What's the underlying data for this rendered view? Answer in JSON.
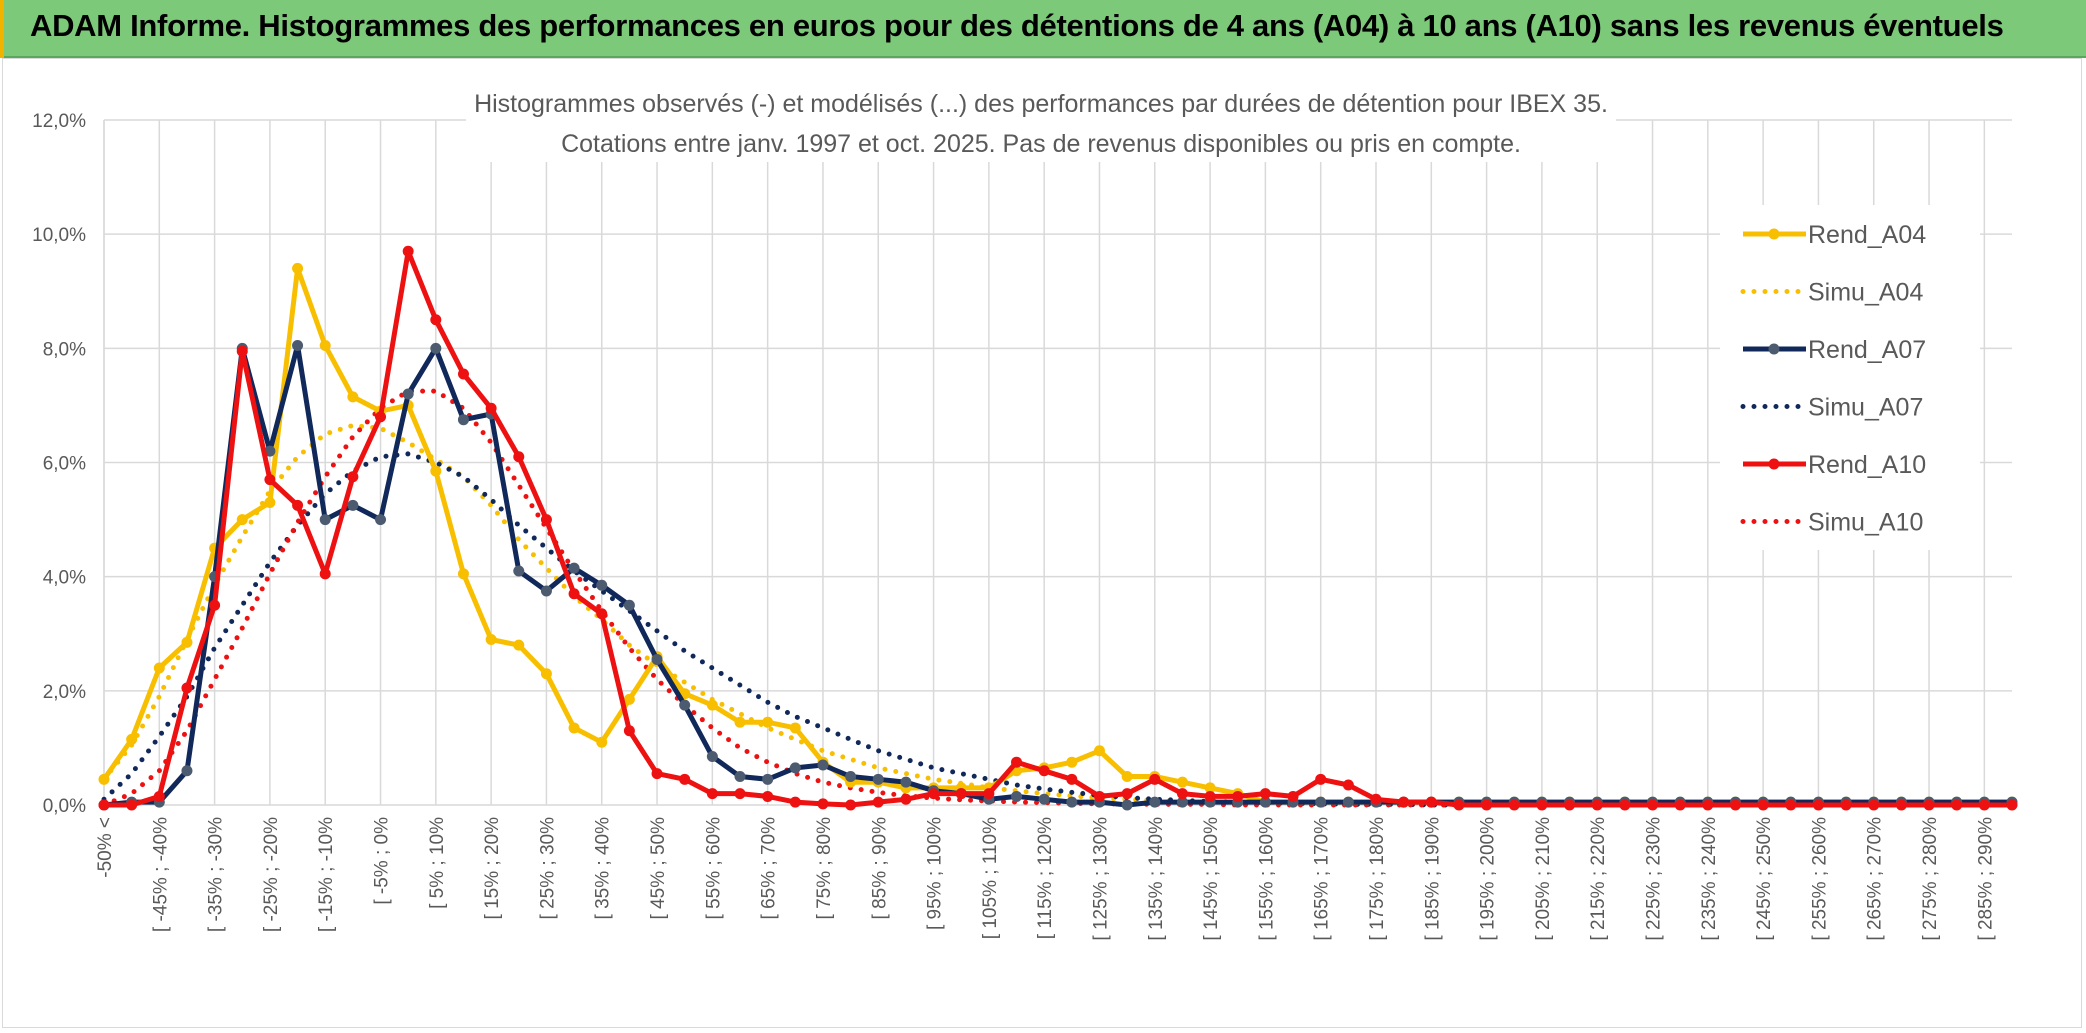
{
  "header": {
    "title": "ADAM Informe. Histogrammes des performances en euros pour des détentions de 4 ans (A04) à 10 ans (A10) sans les revenus éventuels"
  },
  "colors": {
    "header_bg": "#7dc97a",
    "a04": "#f8bf00",
    "a07": "#10285a",
    "a07_marker": "#4c5b70",
    "a10": "#ee1111",
    "grid": "#d9d9d9",
    "axis_text": "#595959"
  },
  "chart_data": {
    "type": "line",
    "title_line1": "Histogrammes observés (-) et modélisés (...) des performances par durées de détention pour IBEX 35.",
    "title_line2": "Cotations entre janv. 1997 et oct. 2025. Pas de revenus disponibles ou pris en compte.",
    "y_ticks": [
      "0,0%",
      "2,0%",
      "4,0%",
      "6,0%",
      "8,0%",
      "10,0%",
      "12,0%"
    ],
    "ylim": [
      0,
      12
    ],
    "categories": [
      "-50% <",
      "[ -50% ; -45%",
      "[ -45% ; -40%",
      "[ -40% ; -35%",
      "[ -35% ; -30%",
      "[ -30% ; -25%",
      "[ -25% ; -20%",
      "[ -20% ; -15%",
      "[ -15% ; -10%",
      "[ -10% ; -5%",
      "[ -5% ; 0%",
      "[ 0% ; 5%",
      "[ 5% ; 10%",
      "[ 10% ; 15%",
      "[ 15% ; 20%",
      "[ 20% ; 25%",
      "[ 25% ; 30%",
      "[ 30% ; 35%",
      "[ 35% ; 40%",
      "[ 40% ; 45%",
      "[ 45% ; 50%",
      "[ 50% ; 55%",
      "[ 55% ; 60%",
      "[ 60% ; 65%",
      "[ 65% ; 70%",
      "[ 70% ; 75%",
      "[ 75% ; 80%",
      "[ 80% ; 85%",
      "[ 85% ; 90%",
      "[ 90% ; 95%",
      "[ 95% ; 100%",
      "[ 100% ; 105%",
      "[ 105% ; 110%",
      "[ 110% ; 115%",
      "[ 115% ; 120%",
      "[ 120% ; 125%",
      "[ 125% ; 130%",
      "[ 130% ; 135%",
      "[ 135% ; 140%",
      "[ 140% ; 145%",
      "[ 145% ; 150%",
      "[ 150% ; 155%",
      "[ 155% ; 160%",
      "[ 160% ; 165%",
      "[ 165% ; 170%",
      "[ 170% ; 175%",
      "[ 175% ; 180%",
      "[ 180% ; 185%",
      "[ 185% ; 190%",
      "[ 190% ; 195%",
      "[ 195% ; 200%",
      "[ 200% ; 205%",
      "[ 205% ; 210%",
      "[ 210% ; 215%",
      "[ 215% ; 220%",
      "[ 220% ; 225%",
      "[ 225% ; 230%",
      "[ 230% ; 235%",
      "[ 235% ; 240%",
      "[ 240% ; 245%",
      "[ 245% ; 250%",
      "[ 250% ; 255%",
      "[ 255% ; 260%",
      "[ 260% ; 265%",
      "[ 265% ; 270%",
      "[ 270% ; 275%",
      "[ 275% ; 280%",
      "[ 280% ; 285%",
      "[ 285% ; 290%",
      "[ 290% ; 295%"
    ],
    "shown_labels": [
      "-50% <",
      "[ -45% ; -40%",
      "[ -35% ; -30%",
      "[ -25% ; -20%",
      "[ -15% ; -10%",
      "[ -5% ; 0%",
      "[ 5% ; 10%",
      "[ 15% ; 20%",
      "[ 25% ; 30%",
      "[ 35% ; 40%",
      "[ 45% ; 50%",
      "[ 55% ; 60%",
      "[ 65% ; 70%",
      "[ 75% ; 80%",
      "[ 85% ; 90%",
      "[ 95% ; 100%",
      "[ 105% ; 110%",
      "[ 115% ; 120%",
      "[ 125% ; 130%",
      "[ 135% ; 140%",
      "[ 145% ; 150%",
      "[ 155% ; 160%",
      "[ 165% ; 170%",
      "[ 175% ; 180%",
      "[ 185% ; 190%",
      "[ 195% ; 200%",
      "[ 205% ; 210%",
      "[ 215% ; 220%",
      "[ 225% ; 230%",
      "[ 235% ; 240%",
      "[ 245% ; 250%",
      "[ 255% ; 260%",
      "[ 265% ; 270%",
      "[ 275% ; 280%",
      "[ 285% ; 290%"
    ],
    "series": [
      {
        "name": "Rend_A04",
        "style": "solid",
        "color": "#f8bf00",
        "marker": true,
        "values": [
          0.45,
          1.15,
          2.4,
          2.85,
          4.5,
          5.0,
          5.3,
          9.4,
          8.05,
          7.15,
          6.9,
          7.0,
          5.85,
          4.05,
          2.9,
          2.8,
          2.3,
          1.35,
          1.1,
          1.85,
          2.6,
          1.95,
          1.75,
          1.45,
          1.45,
          1.35,
          0.75,
          0.4,
          0.4,
          0.3,
          0.3,
          0.3,
          0.3,
          0.6,
          0.65,
          0.75,
          0.95,
          0.5,
          0.5,
          0.4,
          0.3,
          0.2,
          0.05,
          0.05,
          0.05,
          0.05,
          0.05,
          0.05,
          0.05,
          0.05,
          0.05,
          0.05,
          0.05,
          0.05,
          0.05,
          0.05,
          0.05,
          0.05,
          0.05,
          0.05,
          0.05,
          0.05,
          0.05,
          0.05,
          0.05,
          0.05,
          0.05,
          0.05,
          0.05,
          0.05
        ]
      },
      {
        "name": "Simu_A04",
        "style": "dotted",
        "color": "#f8bf00",
        "marker": false,
        "values": [
          0.45,
          1.05,
          1.9,
          2.9,
          3.85,
          4.7,
          5.5,
          6.1,
          6.5,
          6.65,
          6.6,
          6.35,
          6.05,
          5.75,
          5.25,
          4.65,
          4.15,
          3.65,
          3.25,
          2.8,
          2.45,
          2.15,
          1.85,
          1.6,
          1.35,
          1.15,
          0.95,
          0.8,
          0.65,
          0.55,
          0.45,
          0.38,
          0.3,
          0.25,
          0.2,
          0.16,
          0.12,
          0.1,
          0.08,
          0.06,
          0.05,
          0.04,
          0.03,
          0.02,
          0.02,
          0.01,
          0.01,
          0.01,
          0,
          0,
          0,
          0,
          0,
          0,
          0,
          0,
          0,
          0,
          0,
          0,
          0,
          0,
          0,
          0,
          0,
          0,
          0,
          0,
          0,
          0
        ]
      },
      {
        "name": "Rend_A07",
        "style": "solid",
        "color": "#10285a",
        "marker": true,
        "values": [
          0.0,
          0.05,
          0.05,
          0.6,
          4.0,
          8.0,
          6.2,
          8.05,
          5.0,
          5.25,
          5.0,
          7.2,
          8.0,
          6.75,
          6.85,
          4.1,
          3.75,
          4.15,
          3.85,
          3.5,
          2.55,
          1.75,
          0.85,
          0.5,
          0.45,
          0.65,
          0.7,
          0.5,
          0.45,
          0.4,
          0.25,
          0.2,
          0.1,
          0.15,
          0.1,
          0.05,
          0.05,
          0.0,
          0.05,
          0.05,
          0.05,
          0.05,
          0.05,
          0.05,
          0.05,
          0.05,
          0.05,
          0.05,
          0.05,
          0.05,
          0.05,
          0.05,
          0.05,
          0.05,
          0.05,
          0.05,
          0.05,
          0.05,
          0.05,
          0.05,
          0.05,
          0.05,
          0.05,
          0.05,
          0.05,
          0.05,
          0.05,
          0.05,
          0.05,
          0.05
        ]
      },
      {
        "name": "Simu_A07",
        "style": "dotted",
        "color": "#10285a",
        "marker": false,
        "values": [
          0.1,
          0.55,
          1.2,
          1.9,
          2.75,
          3.5,
          4.25,
          4.9,
          5.45,
          5.85,
          6.1,
          6.15,
          6.0,
          5.75,
          5.35,
          4.9,
          4.5,
          4.1,
          3.75,
          3.4,
          3.05,
          2.7,
          2.4,
          2.1,
          1.8,
          1.55,
          1.35,
          1.15,
          0.95,
          0.8,
          0.65,
          0.55,
          0.45,
          0.35,
          0.28,
          0.22,
          0.17,
          0.13,
          0.1,
          0.08,
          0.06,
          0.05,
          0.04,
          0.03,
          0.02,
          0.01,
          0.01,
          0.01,
          0,
          0,
          0,
          0,
          0,
          0,
          0,
          0,
          0,
          0,
          0,
          0,
          0,
          0,
          0,
          0,
          0,
          0,
          0,
          0,
          0,
          0
        ]
      },
      {
        "name": "Rend_A10",
        "style": "solid",
        "color": "#ee1111",
        "marker": true,
        "values": [
          0.0,
          0.0,
          0.15,
          2.05,
          3.5,
          7.95,
          5.7,
          5.25,
          4.05,
          5.75,
          6.8,
          9.7,
          8.5,
          7.55,
          6.95,
          6.1,
          5.0,
          3.7,
          3.35,
          1.3,
          0.55,
          0.45,
          0.2,
          0.2,
          0.15,
          0.05,
          0.02,
          0.0,
          0.05,
          0.1,
          0.2,
          0.2,
          0.2,
          0.75,
          0.6,
          0.45,
          0.15,
          0.2,
          0.45,
          0.2,
          0.15,
          0.15,
          0.2,
          0.15,
          0.45,
          0.35,
          0.1,
          0.05,
          0.05,
          0.0,
          0.0,
          0.0,
          0.0,
          0.0,
          0.0,
          0.0,
          0.0,
          0.0,
          0.0,
          0.0,
          0.0,
          0.0,
          0.0,
          0.0,
          0.0,
          0.0,
          0.0,
          0.0,
          0.0,
          0.0
        ]
      },
      {
        "name": "Simu_A10",
        "style": "dotted",
        "color": "#ee1111",
        "marker": false,
        "values": [
          0.0,
          0.2,
          0.6,
          1.3,
          2.2,
          3.1,
          4.05,
          4.95,
          5.75,
          6.45,
          6.95,
          7.25,
          7.25,
          6.95,
          6.35,
          5.6,
          4.85,
          4.1,
          3.4,
          2.75,
          2.2,
          1.75,
          1.35,
          1.0,
          0.75,
          0.55,
          0.4,
          0.3,
          0.22,
          0.16,
          0.12,
          0.09,
          0.07,
          0.05,
          0.04,
          0.03,
          0.02,
          0.02,
          0.01,
          0.01,
          0.01,
          0,
          0,
          0,
          0,
          0,
          0,
          0,
          0,
          0,
          0,
          0,
          0,
          0,
          0,
          0,
          0,
          0,
          0,
          0,
          0,
          0,
          0,
          0,
          0,
          0,
          0,
          0,
          0,
          0
        ]
      }
    ]
  }
}
